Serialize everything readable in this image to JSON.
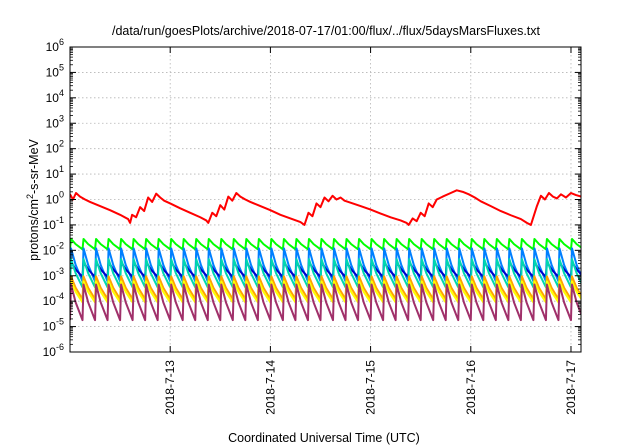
{
  "chart_data": {
    "type": "line",
    "title": "/data/run/goesPlots/archive/2018-07-17/01:00/flux/../flux/5daysMarsFluxes.txt",
    "xlabel": "Coordinated Universal Time (UTC)",
    "ylabel_main": "protons/cm",
    "ylabel_sup": "2",
    "ylabel_rest": "-s-sr-MeV",
    "y_scale": "log",
    "ylim_exponents": [
      -6,
      6
    ],
    "y_ticks": [
      {
        "base": "10",
        "exp": "-6"
      },
      {
        "base": "10",
        "exp": "-5"
      },
      {
        "base": "10",
        "exp": "-4"
      },
      {
        "base": "10",
        "exp": "-3"
      },
      {
        "base": "10",
        "exp": "-2"
      },
      {
        "base": "10",
        "exp": "-1"
      },
      {
        "base": "10",
        "exp": "0"
      },
      {
        "base": "10",
        "exp": "1"
      },
      {
        "base": "10",
        "exp": "2"
      },
      {
        "base": "10",
        "exp": "3"
      },
      {
        "base": "10",
        "exp": "4"
      },
      {
        "base": "10",
        "exp": "5"
      },
      {
        "base": "10",
        "exp": "6"
      }
    ],
    "xlim_days": [
      -1.0,
      4.1
    ],
    "x_ticks": [
      {
        "label": "2018-7-13",
        "day": 0
      },
      {
        "label": "2018-7-14",
        "day": 1
      },
      {
        "label": "2018-7-15",
        "day": 2
      },
      {
        "label": "2018-7-16",
        "day": 3
      },
      {
        "label": "2018-7-17",
        "day": 4
      }
    ],
    "grid": true,
    "series": [
      {
        "color": "#ff0000",
        "points": [
          [
            -1.0,
            1.6
          ],
          [
            -0.97,
            1.0
          ],
          [
            -0.94,
            1.8
          ],
          [
            -0.9,
            1.3
          ],
          [
            -0.85,
            1.0
          ],
          [
            -0.8,
            0.8
          ],
          [
            -0.7,
            0.55
          ],
          [
            -0.6,
            0.38
          ],
          [
            -0.5,
            0.25
          ],
          [
            -0.42,
            0.17
          ],
          [
            -0.4,
            0.12
          ],
          [
            -0.38,
            0.25
          ],
          [
            -0.34,
            0.2
          ],
          [
            -0.3,
            0.5
          ],
          [
            -0.26,
            0.35
          ],
          [
            -0.22,
            1.2
          ],
          [
            -0.18,
            0.8
          ],
          [
            -0.14,
            1.7
          ],
          [
            -0.1,
            1.2
          ],
          [
            -0.06,
            0.9
          ],
          [
            0.0,
            0.7
          ],
          [
            0.1,
            0.45
          ],
          [
            0.2,
            0.3
          ],
          [
            0.3,
            0.2
          ],
          [
            0.36,
            0.15
          ],
          [
            0.38,
            0.12
          ],
          [
            0.42,
            0.3
          ],
          [
            0.46,
            0.22
          ],
          [
            0.5,
            0.6
          ],
          [
            0.54,
            0.4
          ],
          [
            0.58,
            1.3
          ],
          [
            0.62,
            0.9
          ],
          [
            0.66,
            1.8
          ],
          [
            0.7,
            1.3
          ],
          [
            0.75,
            1.0
          ],
          [
            0.8,
            0.8
          ],
          [
            0.9,
            0.55
          ],
          [
            1.0,
            0.38
          ],
          [
            1.1,
            0.25
          ],
          [
            1.2,
            0.18
          ],
          [
            1.3,
            0.13
          ],
          [
            1.34,
            0.1
          ],
          [
            1.38,
            0.3
          ],
          [
            1.42,
            0.22
          ],
          [
            1.46,
            0.7
          ],
          [
            1.5,
            0.5
          ],
          [
            1.54,
            1.2
          ],
          [
            1.58,
            0.85
          ],
          [
            1.62,
            1.4
          ],
          [
            1.66,
            1.0
          ],
          [
            1.7,
            1.2
          ],
          [
            1.74,
            0.9
          ],
          [
            1.8,
            0.75
          ],
          [
            1.9,
            0.55
          ],
          [
            2.0,
            0.4
          ],
          [
            2.1,
            0.28
          ],
          [
            2.2,
            0.2
          ],
          [
            2.3,
            0.15
          ],
          [
            2.36,
            0.12
          ],
          [
            2.38,
            0.1
          ],
          [
            2.42,
            0.18
          ],
          [
            2.46,
            0.14
          ],
          [
            2.5,
            0.3
          ],
          [
            2.54,
            0.22
          ],
          [
            2.58,
            0.7
          ],
          [
            2.62,
            0.5
          ],
          [
            2.66,
            1.0
          ],
          [
            2.72,
            1.3
          ],
          [
            2.8,
            1.8
          ],
          [
            2.86,
            2.3
          ],
          [
            2.92,
            2.0
          ],
          [
            2.98,
            1.6
          ],
          [
            3.04,
            1.2
          ],
          [
            3.1,
            0.85
          ],
          [
            3.2,
            0.55
          ],
          [
            3.3,
            0.35
          ],
          [
            3.4,
            0.24
          ],
          [
            3.5,
            0.17
          ],
          [
            3.56,
            0.12
          ],
          [
            3.6,
            0.1
          ],
          [
            3.66,
            0.55
          ],
          [
            3.7,
            1.4
          ],
          [
            3.74,
            1.0
          ],
          [
            3.78,
            1.8
          ],
          [
            3.82,
            1.3
          ],
          [
            3.86,
            1.1
          ],
          [
            3.9,
            1.6
          ],
          [
            3.95,
            1.2
          ],
          [
            4.0,
            1.8
          ],
          [
            4.05,
            1.5
          ],
          [
            4.1,
            1.3
          ]
        ]
      },
      {
        "color": "#00ff00",
        "sawtooth": {
          "period": 0.125,
          "phase": 0.0,
          "high": 0.028,
          "low": 0.011
        }
      },
      {
        "color": "#007fff",
        "sawtooth": {
          "period": 0.125,
          "phase": 0.01,
          "high": 0.012,
          "low": 0.0006
        }
      },
      {
        "color": "#0000cc",
        "sawtooth": {
          "period": 0.125,
          "phase": 0.02,
          "high": 0.0035,
          "low": 0.0009
        }
      },
      {
        "color": "#00d7b0",
        "sawtooth": {
          "period": 0.125,
          "phase": 0.03,
          "high": 0.0045,
          "low": 0.00035
        }
      },
      {
        "color": "#ffa500",
        "sawtooth": {
          "period": 0.125,
          "phase": 0.04,
          "high": 0.00095,
          "low": 0.00012
        }
      },
      {
        "color": "#ffff00",
        "sawtooth": {
          "period": 0.125,
          "phase": 0.05,
          "high": 0.0006,
          "low": 9e-05
        }
      },
      {
        "color": "#a0306a",
        "sawtooth": {
          "period": 0.125,
          "phase": 0.06,
          "high": 0.00045,
          "low": 1.8e-05
        }
      }
    ]
  }
}
